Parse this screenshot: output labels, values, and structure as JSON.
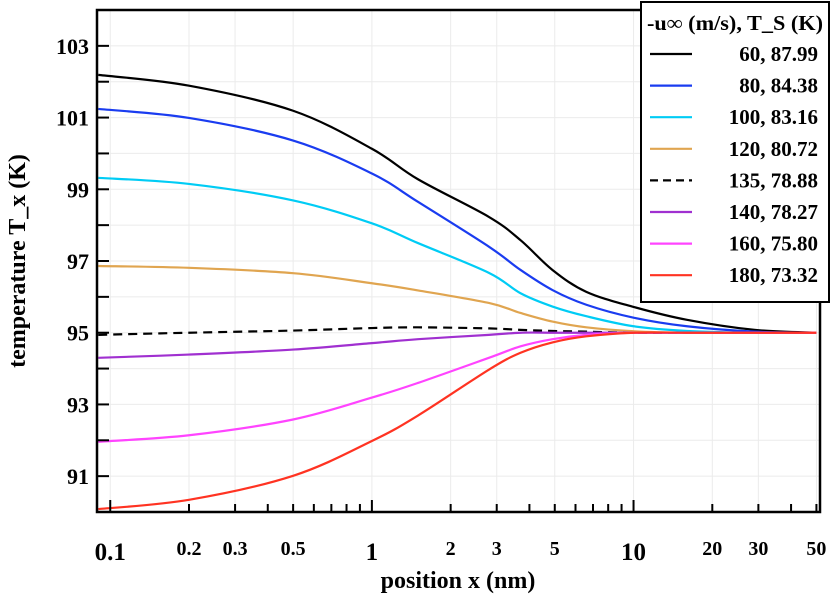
{
  "chart_data": {
    "type": "line",
    "xlabel": "position x (nm)",
    "ylabel": "temperature T_x (K)",
    "xscale": "log",
    "xlim": [
      0.089,
      51.6
    ],
    "ylim": [
      90,
      104
    ],
    "grid": true,
    "legend_placement": "top-right",
    "legend_title": "-u∞ (m/s), T_S (K)",
    "xticks": [
      0.1,
      0.2,
      0.3,
      0.5,
      1,
      2,
      3,
      5,
      10,
      20,
      30,
      50
    ],
    "xtick_labels": [
      "0.1",
      "0.2",
      "0.3",
      "0.5",
      "1",
      "2",
      "3",
      "5",
      "10",
      "20",
      "30",
      "50"
    ],
    "yticks": [
      91,
      93,
      95,
      97,
      99,
      101,
      103
    ],
    "ytick_labels": [
      "91",
      "93",
      "95",
      "97",
      "99",
      "101",
      "103"
    ],
    "x": [
      0.09,
      0.2,
      0.5,
      1,
      1.5,
      2.8,
      3.7,
      4.9,
      6.6,
      10,
      16,
      29,
      50
    ],
    "series": [
      {
        "name": "60, 87.99",
        "color": "#000000",
        "dash": false,
        "values": [
          102.19,
          101.89,
          101.19,
          100.13,
          99.28,
          98.23,
          97.58,
          96.75,
          96.14,
          95.72,
          95.36,
          95.08,
          95.0
        ]
      },
      {
        "name": "80, 84.38",
        "color": "#1a3cf0",
        "dash": false,
        "values": [
          101.24,
          100.99,
          100.36,
          99.44,
          98.65,
          97.4,
          96.75,
          96.19,
          95.78,
          95.42,
          95.18,
          95.03,
          95.0
        ]
      },
      {
        "name": "100, 83.16",
        "color": "#00ccf5",
        "dash": false,
        "values": [
          99.32,
          99.15,
          98.69,
          98.05,
          97.5,
          96.67,
          96.1,
          95.73,
          95.46,
          95.18,
          95.05,
          95.0,
          95.0
        ]
      },
      {
        "name": "120, 80.72",
        "color": "#e0a550",
        "dash": false,
        "values": [
          96.86,
          96.81,
          96.66,
          96.38,
          96.18,
          95.83,
          95.55,
          95.31,
          95.15,
          95.04,
          95.0,
          95.0,
          95.0
        ]
      },
      {
        "name": "135, 78.88",
        "color": "#000000",
        "dash": true,
        "values": [
          94.94,
          95.0,
          95.06,
          95.13,
          95.15,
          95.12,
          95.08,
          95.05,
          95.03,
          95.0,
          95.0,
          95.0,
          95.0
        ]
      },
      {
        "name": "140, 78.27",
        "color": "#a030d0",
        "dash": false,
        "values": [
          94.3,
          94.39,
          94.53,
          94.71,
          94.82,
          94.94,
          95.0,
          95.0,
          95.0,
          95.0,
          95.0,
          95.0,
          95.0
        ]
      },
      {
        "name": "160, 75.80",
        "color": "#ff44ff",
        "dash": false,
        "values": [
          91.96,
          92.14,
          92.58,
          93.19,
          93.6,
          94.3,
          94.62,
          94.82,
          94.94,
          95.0,
          95.0,
          95.0,
          95.0
        ]
      },
      {
        "name": "180, 73.32",
        "color": "#ff3322",
        "dash": false,
        "values": [
          90.08,
          90.34,
          91.01,
          91.98,
          92.69,
          93.97,
          94.44,
          94.73,
          94.9,
          95.0,
          95.0,
          95.0,
          95.0
        ]
      }
    ]
  }
}
